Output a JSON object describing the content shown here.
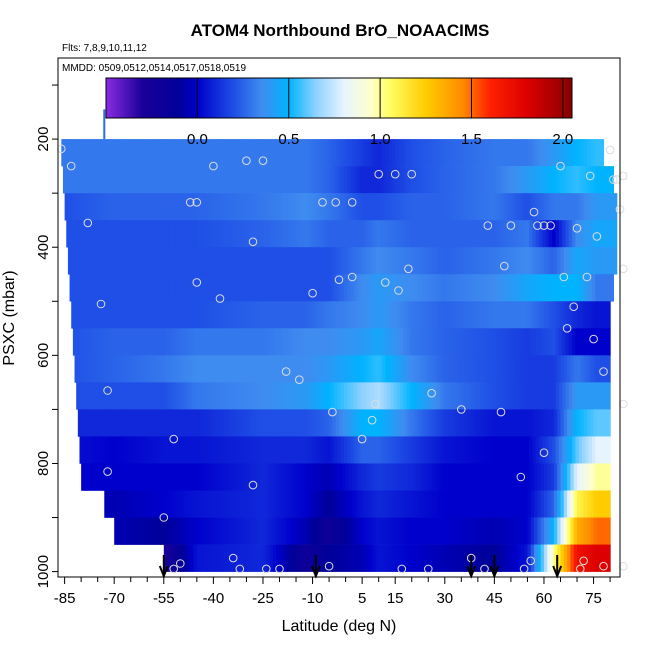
{
  "chart_data": {
    "type": "heatmap",
    "title": "ATOM4 Northbound BrO_NOAACIMS",
    "flights_note": "Flts: 7,8,9,10,11,12",
    "dates_note": "MMDD: 0509,0512,0514,0517,0518,0519",
    "xlabel": "Latitude (deg N)",
    "ylabel": "PSXC (mbar)",
    "xlim": [
      -87,
      83
    ],
    "ylim": [
      1010,
      50
    ],
    "y_reversed": true,
    "x_ticks": [
      "-85",
      "-70",
      "-55",
      "-40",
      "-25",
      "-10",
      "5",
      "15",
      "30",
      "45",
      "60",
      "75"
    ],
    "y_ticks": [
      "200",
      "400",
      "600",
      "800",
      "1000"
    ],
    "colorbar": {
      "range": [
        -0.5,
        2.05
      ],
      "ticks": [
        "0.0",
        "0.5",
        "1.0",
        "1.5",
        "2.0"
      ],
      "stops": [
        {
          "v": -0.5,
          "c": "#8a2be2"
        },
        {
          "v": -0.3,
          "c": "#1a0099"
        },
        {
          "v": -0.1,
          "c": "#000099"
        },
        {
          "v": 0.0,
          "c": "#0000cc"
        },
        {
          "v": 0.2,
          "c": "#1f4fe6"
        },
        {
          "v": 0.35,
          "c": "#3f8cf0"
        },
        {
          "v": 0.5,
          "c": "#00b3ff"
        },
        {
          "v": 0.65,
          "c": "#8fd1ff"
        },
        {
          "v": 0.8,
          "c": "#e6f4ff"
        },
        {
          "v": 0.95,
          "c": "#ffffcc"
        },
        {
          "v": 1.05,
          "c": "#ffff66"
        },
        {
          "v": 1.25,
          "c": "#ffcc00"
        },
        {
          "v": 1.45,
          "c": "#ff8c00"
        },
        {
          "v": 1.6,
          "c": "#ff2200"
        },
        {
          "v": 1.8,
          "c": "#dd0000"
        },
        {
          "v": 2.05,
          "c": "#880000"
        }
      ]
    },
    "pressure_levels": [
      225,
      275,
      325,
      375,
      425,
      475,
      525,
      575,
      625,
      675,
      725,
      775,
      825,
      875,
      925,
      975
    ],
    "level_start_lat": [
      -86,
      -85.5,
      -85,
      -84.5,
      -84,
      -83.5,
      -83,
      -82.5,
      -82,
      -81.5,
      -81,
      -80.5,
      -80,
      -73,
      -70,
      -55
    ],
    "level_end_lat": [
      78,
      81,
      82,
      82,
      82,
      81,
      80,
      80,
      80,
      80,
      80,
      80,
      80,
      80,
      80,
      80
    ],
    "profiles": [
      {
        "lat": -86,
        "v": [
          0.3,
          0.3,
          0.2,
          0.2,
          0.2,
          0.2,
          0.2,
          0.2,
          0.2,
          0.2,
          0.1,
          0.05,
          0.0,
          0.0,
          0.0,
          0.0
        ]
      },
      {
        "lat": -70,
        "v": [
          0.3,
          0.3,
          0.25,
          0.2,
          0.2,
          0.2,
          0.2,
          0.25,
          0.25,
          0.2,
          0.1,
          0.0,
          0.0,
          -0.05,
          -0.05,
          -0.05
        ]
      },
      {
        "lat": -55,
        "v": [
          0.3,
          0.3,
          0.25,
          0.2,
          0.2,
          0.2,
          0.2,
          0.25,
          0.3,
          0.2,
          0.1,
          0.05,
          0.0,
          0.0,
          -0.1,
          -0.3
        ]
      },
      {
        "lat": -45,
        "v": [
          0.3,
          0.3,
          0.25,
          0.2,
          0.2,
          0.2,
          0.2,
          0.3,
          0.35,
          0.3,
          0.1,
          0.05,
          0.0,
          0.05,
          0.0,
          0.05
        ]
      },
      {
        "lat": -25,
        "v": [
          0.3,
          0.3,
          0.3,
          0.25,
          0.2,
          0.2,
          0.25,
          0.3,
          0.35,
          0.35,
          0.2,
          0.1,
          0.1,
          0.1,
          0.1,
          0.1
        ]
      },
      {
        "lat": -12,
        "v": [
          0.3,
          0.3,
          0.35,
          0.3,
          0.2,
          0.2,
          0.25,
          0.35,
          0.35,
          0.4,
          0.2,
          0.1,
          0.0,
          0.0,
          -0.05,
          -0.2
        ]
      },
      {
        "lat": -5,
        "v": [
          0.25,
          0.25,
          0.3,
          0.25,
          0.2,
          0.2,
          0.3,
          0.35,
          0.4,
          0.5,
          0.25,
          0.05,
          -0.05,
          -0.1,
          -0.2,
          -0.1
        ]
      },
      {
        "lat": 5,
        "v": [
          0.15,
          0.1,
          0.2,
          0.25,
          0.3,
          0.35,
          0.35,
          0.4,
          0.5,
          0.65,
          0.5,
          0.25,
          0.1,
          0.05,
          0.0,
          -0.05
        ]
      },
      {
        "lat": 10,
        "v": [
          0.1,
          0.1,
          0.2,
          0.3,
          0.35,
          0.4,
          0.4,
          0.45,
          0.55,
          0.7,
          0.5,
          0.25,
          0.15,
          0.1,
          0.05,
          0.05
        ]
      },
      {
        "lat": 20,
        "v": [
          0.2,
          0.2,
          0.25,
          0.25,
          0.3,
          0.35,
          0.3,
          0.3,
          0.35,
          0.5,
          0.3,
          0.15,
          0.1,
          0.05,
          0.0,
          0.0
        ]
      },
      {
        "lat": 30,
        "v": [
          0.25,
          0.25,
          0.25,
          0.25,
          0.25,
          0.3,
          0.25,
          0.25,
          0.25,
          0.3,
          0.15,
          0.05,
          0.0,
          0.0,
          0.0,
          -0.05
        ]
      },
      {
        "lat": 45,
        "v": [
          0.3,
          0.3,
          0.3,
          0.25,
          0.3,
          0.35,
          0.3,
          0.2,
          0.2,
          0.2,
          0.05,
          0.0,
          0.0,
          0.0,
          -0.05,
          -0.1
        ]
      },
      {
        "lat": 55,
        "v": [
          0.3,
          0.4,
          0.2,
          0.3,
          0.35,
          0.45,
          0.3,
          0.15,
          0.15,
          0.15,
          0.05,
          0.0,
          0.0,
          0.0,
          0.0,
          0.05
        ]
      },
      {
        "lat": 63,
        "v": [
          0.4,
          0.5,
          0.3,
          0.0,
          0.25,
          0.5,
          0.2,
          0.2,
          0.15,
          0.15,
          0.1,
          0.2,
          0.15,
          0.25,
          0.5,
          1.0
        ]
      },
      {
        "lat": 70,
        "v": [
          0.5,
          0.55,
          0.3,
          0.35,
          0.45,
          0.5,
          0.1,
          0.0,
          0.3,
          0.4,
          0.5,
          0.6,
          0.8,
          1.1,
          1.35,
          1.7
        ]
      },
      {
        "lat": 76,
        "v": [
          0.55,
          0.5,
          0.4,
          0.45,
          0.4,
          0.3,
          0.05,
          0.0,
          0.2,
          0.4,
          0.6,
          0.8,
          1.0,
          1.25,
          1.5,
          1.8
        ]
      },
      {
        "lat": 82,
        "v": [
          0.55,
          0.5,
          0.4,
          0.45,
          0.4,
          0.3,
          0.05,
          0.0,
          0.2,
          0.4,
          0.6,
          0.8,
          1.0,
          1.25,
          1.5,
          1.8
        ]
      }
    ],
    "sample_points": [
      [
        -86,
        218
      ],
      [
        -83,
        250
      ],
      [
        -78,
        355
      ],
      [
        -74,
        505
      ],
      [
        -72,
        665
      ],
      [
        -72,
        815
      ],
      [
        -55,
        900
      ],
      [
        -52,
        995
      ],
      [
        -50,
        985
      ],
      [
        -52,
        755
      ],
      [
        -47,
        317
      ],
      [
        -45,
        317
      ],
      [
        -45,
        465
      ],
      [
        -40,
        250
      ],
      [
        -38,
        495
      ],
      [
        -34,
        975
      ],
      [
        -32,
        995
      ],
      [
        -30,
        240
      ],
      [
        -28,
        390
      ],
      [
        -28,
        840
      ],
      [
        -25,
        240
      ],
      [
        -24,
        995
      ],
      [
        -20,
        995
      ],
      [
        -18,
        630
      ],
      [
        -14,
        645
      ],
      [
        -10,
        485
      ],
      [
        -7,
        317
      ],
      [
        -5,
        990
      ],
      [
        -4,
        705
      ],
      [
        -3,
        317
      ],
      [
        -2,
        460
      ],
      [
        2,
        455
      ],
      [
        2,
        317
      ],
      [
        5,
        755
      ],
      [
        8,
        720
      ],
      [
        9,
        690
      ],
      [
        10,
        265
      ],
      [
        12,
        465
      ],
      [
        15,
        265
      ],
      [
        16,
        480
      ],
      [
        17,
        995
      ],
      [
        19,
        440
      ],
      [
        20,
        265
      ],
      [
        25,
        995
      ],
      [
        26,
        670
      ],
      [
        35,
        700
      ],
      [
        38,
        975
      ],
      [
        42,
        995
      ],
      [
        43,
        360
      ],
      [
        47,
        705
      ],
      [
        48,
        435
      ],
      [
        50,
        360
      ],
      [
        53,
        825
      ],
      [
        54,
        995
      ],
      [
        56,
        980
      ],
      [
        57,
        335
      ],
      [
        58,
        360
      ],
      [
        60,
        360
      ],
      [
        60,
        780
      ],
      [
        62,
        360
      ],
      [
        65,
        250
      ],
      [
        66,
        455
      ],
      [
        67,
        550
      ],
      [
        69,
        510
      ],
      [
        70,
        365
      ],
      [
        71,
        995
      ],
      [
        72,
        980
      ],
      [
        73,
        455
      ],
      [
        74,
        268
      ],
      [
        75,
        570
      ],
      [
        76,
        380
      ],
      [
        78,
        990
      ],
      [
        78,
        630
      ],
      [
        80,
        220
      ],
      [
        81,
        275
      ],
      [
        82,
        275
      ],
      [
        83,
        330
      ],
      [
        84,
        690
      ],
      [
        84,
        990
      ],
      [
        84,
        440
      ],
      [
        84,
        268
      ]
    ],
    "arrows_lat": [
      -55,
      -9,
      38,
      45,
      64
    ],
    "top_marker_lat": -73
  }
}
